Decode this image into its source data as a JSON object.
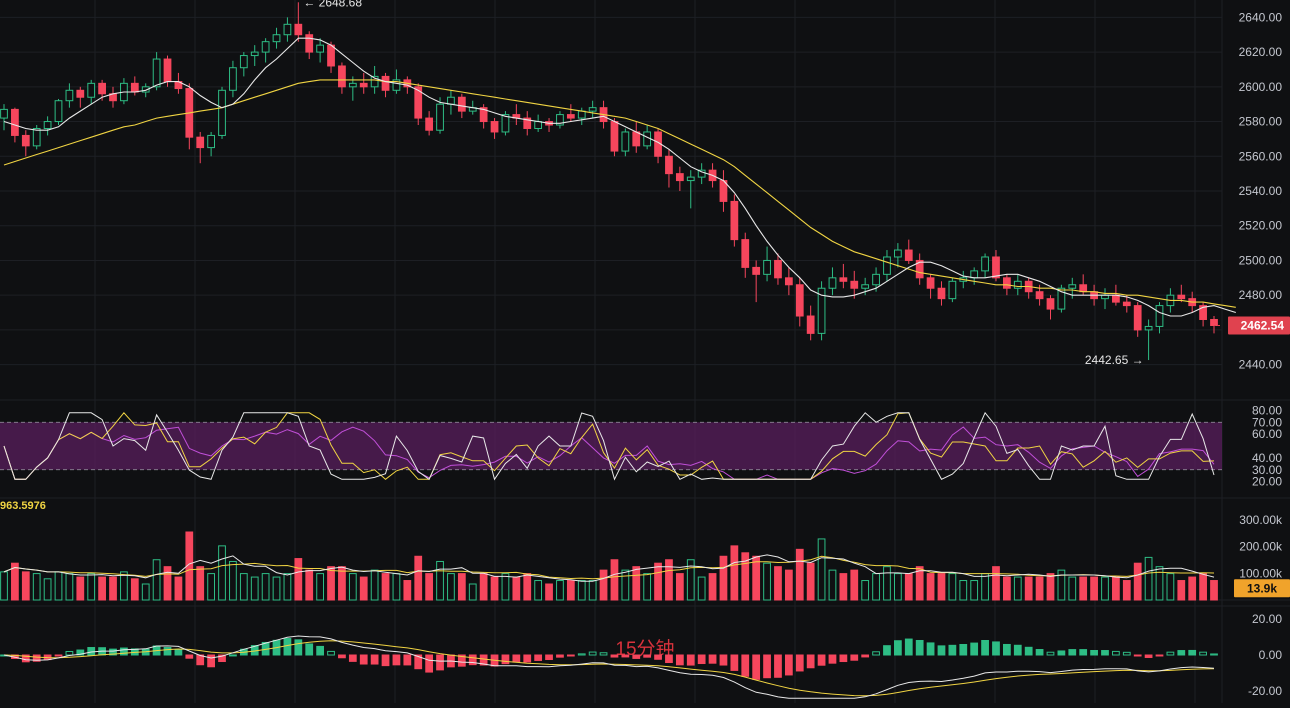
{
  "colors": {
    "background": "#0f1012",
    "up": "#2ebd85",
    "down": "#f6465d",
    "ma_fast": "#e8e8e8",
    "ma_slow": "#f0d443",
    "rsi_band": "#5a1e5e",
    "rsi_line3": "#c04fd8",
    "price_tag": "#e0424f",
    "volume_tag": "#f0a32b",
    "watermark": "#d8323c"
  },
  "watermark": "15分钟",
  "price_panel": {
    "y_ticks": [
      "2640.00",
      "2620.00",
      "2600.00",
      "2580.00",
      "2560.00",
      "2540.00",
      "2520.00",
      "2500.00",
      "2480.00",
      "2460.00",
      "2440.00"
    ],
    "last_price": "2462.54",
    "high_label": "← 2648.68",
    "low_label": "2442.65 →"
  },
  "rsi_panel": {
    "y_ticks": [
      "80.00",
      "70.00",
      "60.00",
      "40.00",
      "30.00",
      "20.00"
    ]
  },
  "volume_panel": {
    "y_ticks": [
      "300.00k",
      "200.00k",
      "100.00k"
    ],
    "last_volume": "13.9k",
    "indicator_value": "963.5976"
  },
  "macd_panel": {
    "y_ticks": [
      "20.00",
      "0.00",
      "-20.00"
    ]
  },
  "chart_data": {
    "type": "candlestick",
    "price_axis": {
      "ylim": [
        2430,
        2650
      ],
      "high": 2648.68,
      "low": 2442.65,
      "last": 2462.54
    },
    "candles": [
      [
        2582,
        2590,
        2575,
        2587
      ],
      [
        2587,
        2588,
        2568,
        2572
      ],
      [
        2572,
        2575,
        2560,
        2566
      ],
      [
        2566,
        2578,
        2564,
        2576
      ],
      [
        2576,
        2583,
        2572,
        2580
      ],
      [
        2580,
        2593,
        2578,
        2592
      ],
      [
        2592,
        2602,
        2588,
        2598
      ],
      [
        2598,
        2600,
        2588,
        2594
      ],
      [
        2594,
        2604,
        2590,
        2602
      ],
      [
        2602,
        2604,
        2592,
        2596
      ],
      [
        2596,
        2600,
        2588,
        2592
      ],
      [
        2592,
        2605,
        2590,
        2602
      ],
      [
        2602,
        2606,
        2595,
        2597
      ],
      [
        2597,
        2602,
        2594,
        2600
      ],
      [
        2600,
        2620,
        2598,
        2616
      ],
      [
        2616,
        2618,
        2600,
        2603
      ],
      [
        2603,
        2608,
        2596,
        2599
      ],
      [
        2599,
        2602,
        2564,
        2571
      ],
      [
        2571,
        2574,
        2556,
        2565
      ],
      [
        2565,
        2574,
        2560,
        2572
      ],
      [
        2572,
        2600,
        2570,
        2598
      ],
      [
        2598,
        2615,
        2594,
        2611
      ],
      [
        2611,
        2620,
        2606,
        2618
      ],
      [
        2618,
        2624,
        2612,
        2620
      ],
      [
        2620,
        2628,
        2614,
        2626
      ],
      [
        2626,
        2634,
        2622,
        2630
      ],
      [
        2630,
        2640,
        2626,
        2636
      ],
      [
        2636,
        2648.68,
        2626,
        2630
      ],
      [
        2630,
        2632,
        2616,
        2620
      ],
      [
        2620,
        2628,
        2614,
        2624
      ],
      [
        2624,
        2626,
        2608,
        2612
      ],
      [
        2612,
        2614,
        2596,
        2600
      ],
      [
        2600,
        2606,
        2592,
        2602
      ],
      [
        2602,
        2608,
        2596,
        2600
      ],
      [
        2600,
        2612,
        2596,
        2606
      ],
      [
        2606,
        2608,
        2594,
        2598
      ],
      [
        2598,
        2610,
        2596,
        2604
      ],
      [
        2604,
        2606,
        2596,
        2600
      ],
      [
        2600,
        2602,
        2578,
        2582
      ],
      [
        2582,
        2586,
        2572,
        2575
      ],
      [
        2575,
        2594,
        2573,
        2590
      ],
      [
        2590,
        2598,
        2584,
        2594
      ],
      [
        2594,
        2596,
        2582,
        2586
      ],
      [
        2586,
        2592,
        2584,
        2588
      ],
      [
        2588,
        2590,
        2576,
        2580
      ],
      [
        2580,
        2582,
        2570,
        2574
      ],
      [
        2574,
        2586,
        2572,
        2584
      ],
      [
        2584,
        2590,
        2578,
        2582
      ],
      [
        2582,
        2586,
        2572,
        2576
      ],
      [
        2576,
        2584,
        2574,
        2580
      ],
      [
        2580,
        2582,
        2574,
        2578
      ],
      [
        2578,
        2586,
        2576,
        2584
      ],
      [
        2584,
        2590,
        2580,
        2582
      ],
      [
        2582,
        2588,
        2578,
        2586
      ],
      [
        2586,
        2592,
        2582,
        2588
      ],
      [
        2588,
        2592,
        2576,
        2580
      ],
      [
        2580,
        2582,
        2560,
        2563
      ],
      [
        2563,
        2576,
        2560,
        2574
      ],
      [
        2574,
        2580,
        2562,
        2566
      ],
      [
        2566,
        2578,
        2564,
        2574
      ],
      [
        2574,
        2576,
        2556,
        2560
      ],
      [
        2560,
        2564,
        2542,
        2550
      ],
      [
        2550,
        2554,
        2540,
        2546
      ],
      [
        2546,
        2552,
        2530,
        2548
      ],
      [
        2548,
        2556,
        2544,
        2552
      ],
      [
        2552,
        2556,
        2542,
        2546
      ],
      [
        2546,
        2552,
        2528,
        2534
      ],
      [
        2534,
        2538,
        2508,
        2512
      ],
      [
        2512,
        2516,
        2490,
        2496
      ],
      [
        2496,
        2500,
        2476,
        2492
      ],
      [
        2492,
        2508,
        2488,
        2500
      ],
      [
        2500,
        2504,
        2486,
        2490
      ],
      [
        2490,
        2496,
        2480,
        2486
      ],
      [
        2486,
        2490,
        2462,
        2468
      ],
      [
        2468,
        2474,
        2454,
        2458
      ],
      [
        2458,
        2488,
        2454,
        2484
      ],
      [
        2484,
        2496,
        2480,
        2490
      ],
      [
        2490,
        2498,
        2484,
        2488
      ],
      [
        2488,
        2494,
        2478,
        2484
      ],
      [
        2484,
        2490,
        2480,
        2486
      ],
      [
        2486,
        2496,
        2482,
        2492
      ],
      [
        2492,
        2506,
        2488,
        2502
      ],
      [
        2502,
        2510,
        2496,
        2506
      ],
      [
        2506,
        2512,
        2498,
        2500
      ],
      [
        2500,
        2504,
        2486,
        2490
      ],
      [
        2490,
        2492,
        2478,
        2484
      ],
      [
        2484,
        2488,
        2474,
        2478
      ],
      [
        2478,
        2490,
        2476,
        2488
      ],
      [
        2488,
        2494,
        2484,
        2490
      ],
      [
        2490,
        2496,
        2486,
        2494
      ],
      [
        2494,
        2504,
        2490,
        2502
      ],
      [
        2502,
        2506,
        2488,
        2490
      ],
      [
        2490,
        2492,
        2480,
        2484
      ],
      [
        2484,
        2492,
        2480,
        2488
      ],
      [
        2488,
        2490,
        2478,
        2482
      ],
      [
        2482,
        2486,
        2474,
        2478
      ],
      [
        2478,
        2480,
        2466,
        2472
      ],
      [
        2472,
        2486,
        2470,
        2484
      ],
      [
        2484,
        2490,
        2478,
        2486
      ],
      [
        2486,
        2492,
        2480,
        2482
      ],
      [
        2482,
        2486,
        2474,
        2478
      ],
      [
        2478,
        2484,
        2472,
        2480
      ],
      [
        2480,
        2486,
        2474,
        2476
      ],
      [
        2476,
        2480,
        2470,
        2474
      ],
      [
        2474,
        2476,
        2456,
        2460
      ],
      [
        2460,
        2466,
        2442.65,
        2462
      ],
      [
        2462,
        2476,
        2458,
        2474
      ],
      [
        2474,
        2484,
        2470,
        2480
      ],
      [
        2480,
        2486,
        2476,
        2478
      ],
      [
        2478,
        2482,
        2470,
        2474
      ],
      [
        2474,
        2476,
        2462,
        2466
      ],
      [
        2466,
        2468,
        2458,
        2462.54
      ]
    ],
    "ma_fast": [
      2580,
      2578,
      2576,
      2575,
      2575,
      2577,
      2582,
      2586,
      2590,
      2594,
      2596,
      2597,
      2597,
      2598,
      2601,
      2603,
      2603,
      2600,
      2595,
      2591,
      2588,
      2590,
      2596,
      2604,
      2611,
      2616,
      2622,
      2628,
      2628,
      2627,
      2624,
      2619,
      2614,
      2609,
      2605,
      2603,
      2602,
      2601,
      2598,
      2594,
      2591,
      2590,
      2589,
      2588,
      2587,
      2585,
      2583,
      2582,
      2581,
      2580,
      2579,
      2579,
      2580,
      2581,
      2582,
      2583,
      2580,
      2577,
      2574,
      2571,
      2568,
      2564,
      2559,
      2554,
      2551,
      2549,
      2546,
      2539,
      2530,
      2520,
      2511,
      2503,
      2496,
      2490,
      2483,
      2480,
      2479,
      2479,
      2480,
      2482,
      2484,
      2488,
      2492,
      2496,
      2499,
      2499,
      2497,
      2494,
      2491,
      2490,
      2490,
      2491,
      2492,
      2492,
      2490,
      2488,
      2485,
      2482,
      2480,
      2480,
      2480,
      2480,
      2480,
      2479,
      2477,
      2474,
      2470,
      2468,
      2468,
      2470,
      2473,
      2474,
      2472,
      2470
    ],
    "ma_slow": [
      2555,
      2557,
      2559,
      2561,
      2563,
      2565,
      2567,
      2569,
      2571,
      2573,
      2575,
      2577,
      2578,
      2580,
      2582,
      2583,
      2584,
      2585,
      2586,
      2587,
      2588,
      2590,
      2592,
      2594,
      2596,
      2598,
      2600,
      2602,
      2603,
      2604,
      2604,
      2604,
      2604,
      2604,
      2604,
      2603,
      2603,
      2602,
      2601,
      2600,
      2599,
      2598,
      2597,
      2596,
      2595,
      2594,
      2593,
      2592,
      2591,
      2590,
      2589,
      2588,
      2587,
      2586,
      2585,
      2584,
      2583,
      2582,
      2580,
      2578,
      2576,
      2573,
      2570,
      2567,
      2564,
      2561,
      2558,
      2554,
      2549,
      2544,
      2539,
      2534,
      2529,
      2524,
      2519,
      2515,
      2511,
      2508,
      2505,
      2503,
      2501,
      2499,
      2497,
      2495,
      2493,
      2492,
      2491,
      2490,
      2489,
      2488,
      2487,
      2486,
      2486,
      2485,
      2485,
      2484,
      2484,
      2483,
      2483,
      2482,
      2482,
      2481,
      2481,
      2480,
      2480,
      2479,
      2478,
      2477,
      2477,
      2476,
      2476,
      2475,
      2474,
      2473
    ],
    "rsi_axis": {
      "ylim": [
        18,
        82
      ],
      "band": [
        30,
        70
      ]
    },
    "volume_axis": {
      "ylim": [
        0,
        330000
      ],
      "last": 13900
    },
    "macd_axis": {
      "ylim": [
        -25,
        25
      ]
    }
  }
}
